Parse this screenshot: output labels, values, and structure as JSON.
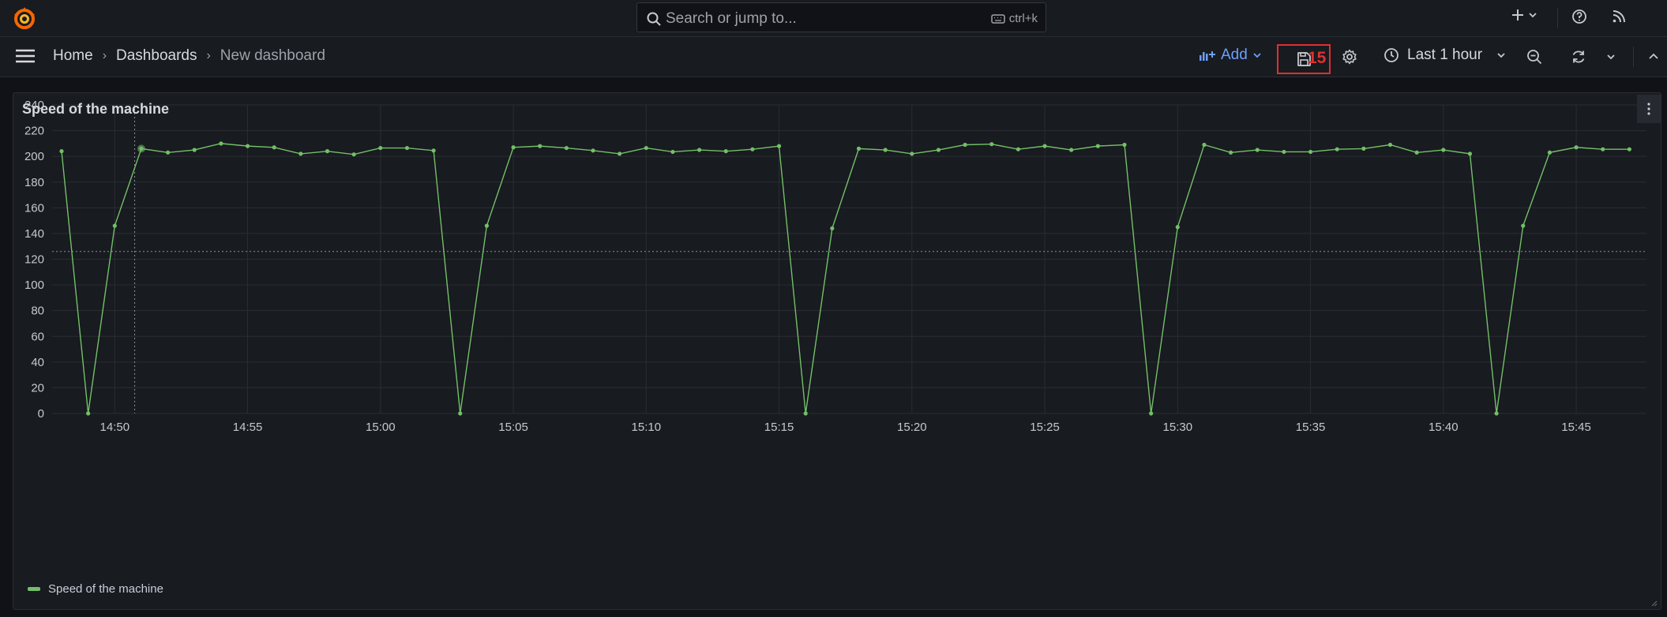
{
  "topbar": {
    "search_placeholder": "Search or jump to...",
    "search_shortcut": "ctrl+k",
    "icons": [
      "grafana-logo-icon",
      "search-icon",
      "keyboard-icon",
      "plus-icon",
      "chevron-down-icon",
      "help-icon",
      "rss-icon"
    ]
  },
  "navbar": {
    "breadcrumbs": [
      "Home",
      "Dashboards",
      "New dashboard"
    ],
    "add_label": "Add",
    "marker_label": "15",
    "time_range": "Last 1 hour",
    "icons": [
      "menu-icon",
      "add-panel-icon",
      "save-icon",
      "gear-icon",
      "clock-icon",
      "zoom-out-icon",
      "refresh-icon",
      "chevron-up-icon"
    ]
  },
  "panel": {
    "title": "Speed of the machine",
    "legend_label": "Speed of the machine"
  },
  "chart_data": {
    "type": "line",
    "title": "Speed of the machine",
    "xlabel": "",
    "ylabel": "",
    "ylim": [
      0,
      240
    ],
    "yticks": [
      "0",
      "20",
      "40",
      "60",
      "80",
      "100",
      "120",
      "140",
      "160",
      "180",
      "200",
      "220",
      "240"
    ],
    "xticks": [
      "14:50",
      "14:55",
      "15:00",
      "15:05",
      "15:10",
      "15:15",
      "15:20",
      "15:25",
      "15:30",
      "15:35",
      "15:40",
      "15:45"
    ],
    "x_start": "14:48",
    "x_step_minutes": 1,
    "grid": true,
    "legend_position": "bottom-left",
    "crosshair": {
      "x": "14:50:45",
      "y": 126
    },
    "series": [
      {
        "name": "Speed of the machine",
        "color": "#73bf69",
        "values": [
          204,
          0,
          146,
          206,
          203,
          205,
          210,
          208,
          207,
          202,
          204,
          201.5,
          206.5,
          206.5,
          204.5,
          0,
          146,
          207,
          208,
          206.5,
          204.5,
          202,
          206.5,
          203.5,
          205,
          204,
          205.5,
          208,
          0,
          144,
          206,
          205,
          202,
          205,
          209,
          209.5,
          205.5,
          208,
          205,
          208,
          209,
          0,
          145,
          209,
          203,
          205,
          203.5,
          203.5,
          205.5,
          206,
          209,
          203,
          205,
          202,
          0,
          146,
          203,
          207,
          205.5,
          205.5
        ]
      }
    ]
  }
}
